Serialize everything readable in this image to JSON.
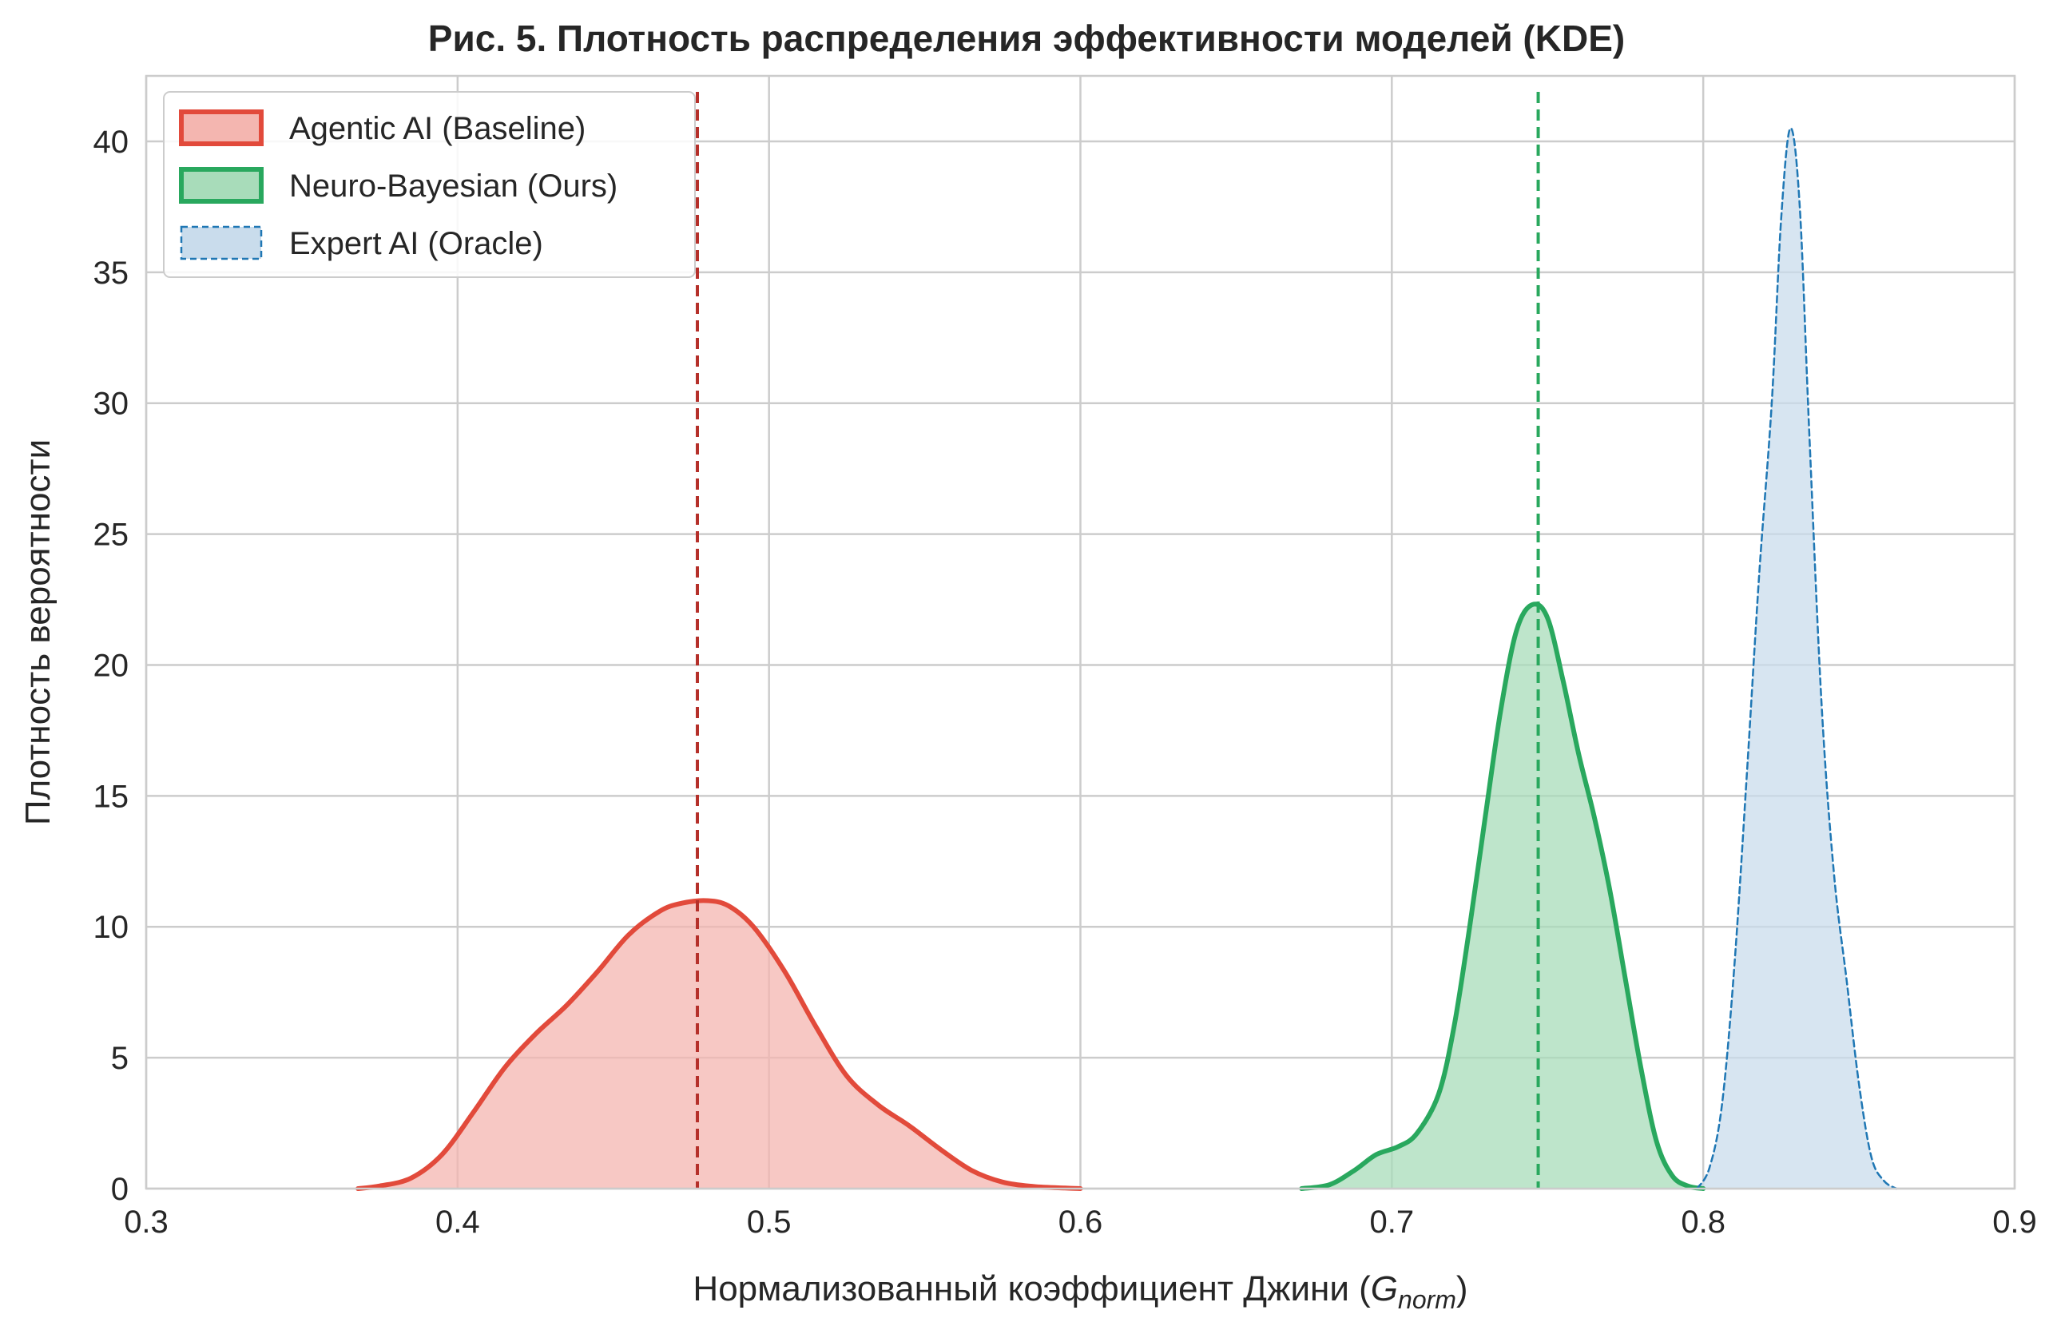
{
  "chart_data": {
    "type": "area",
    "title": "Рис. 5. Плотность распределения эффективности моделей (KDE)",
    "xlabel": "Нормализованный коэффициент Джини (",
    "xlabel_math": "G",
    "xlabel_sub": "norm",
    "xlabel_close": ")",
    "ylabel": "Плотность вероятности",
    "xlim": [
      0.3,
      0.9
    ],
    "ylim": [
      0,
      42.5
    ],
    "xticks": [
      0.3,
      0.4,
      0.5,
      0.6,
      0.7,
      0.8,
      0.9
    ],
    "xtick_labels": [
      "0.3",
      "0.4",
      "0.5",
      "0.6",
      "0.7",
      "0.8",
      "0.9"
    ],
    "yticks": [
      0,
      5,
      10,
      15,
      20,
      25,
      30,
      35,
      40
    ],
    "ytick_labels": [
      "0",
      "5",
      "10",
      "15",
      "20",
      "25",
      "30",
      "35",
      "40"
    ],
    "grid": true,
    "legend_position": "top-left",
    "series": [
      {
        "name": "Agentic AI (Baseline)",
        "color": "#e24a3b",
        "fill": "#f4b6b0",
        "line_style": "solid",
        "mean": 0.477,
        "x": [
          0.368,
          0.375,
          0.385,
          0.395,
          0.405,
          0.415,
          0.425,
          0.435,
          0.445,
          0.455,
          0.465,
          0.472,
          0.48,
          0.487,
          0.495,
          0.505,
          0.515,
          0.525,
          0.535,
          0.545,
          0.555,
          0.565,
          0.575,
          0.585,
          0.595,
          0.6
        ],
        "y": [
          0.0,
          0.1,
          0.4,
          1.3,
          2.9,
          4.6,
          5.9,
          7.0,
          8.3,
          9.7,
          10.6,
          10.9,
          11.0,
          10.8,
          10.0,
          8.3,
          6.2,
          4.3,
          3.2,
          2.4,
          1.5,
          0.7,
          0.25,
          0.08,
          0.02,
          0.0
        ]
      },
      {
        "name": "Neuro-Bayesian (Ours)",
        "color": "#29a85e",
        "fill": "#a8dcba",
        "line_style": "solid",
        "mean": 0.747,
        "x": [
          0.671,
          0.68,
          0.688,
          0.695,
          0.702,
          0.708,
          0.715,
          0.72,
          0.725,
          0.73,
          0.735,
          0.74,
          0.745,
          0.75,
          0.755,
          0.76,
          0.765,
          0.77,
          0.775,
          0.78,
          0.785,
          0.79,
          0.795,
          0.8
        ],
        "y": [
          0.0,
          0.15,
          0.7,
          1.3,
          1.6,
          2.1,
          3.6,
          6.2,
          10.0,
          14.2,
          18.3,
          21.3,
          22.3,
          21.8,
          19.4,
          16.6,
          14.2,
          11.4,
          8.0,
          4.6,
          1.8,
          0.5,
          0.1,
          0.0
        ]
      },
      {
        "name": "Expert AI (Oracle)",
        "color": "#1f77b4",
        "fill": "#c9dcec",
        "line_style": "dashed",
        "x": [
          0.798,
          0.802,
          0.806,
          0.81,
          0.814,
          0.818,
          0.822,
          0.825,
          0.828,
          0.831,
          0.834,
          0.838,
          0.842,
          0.846,
          0.85,
          0.854,
          0.858,
          0.862
        ],
        "y": [
          0.0,
          0.8,
          3.2,
          8.5,
          15.8,
          23.5,
          30.0,
          37.0,
          40.5,
          37.5,
          29.0,
          18.5,
          12.0,
          8.0,
          4.0,
          1.2,
          0.3,
          0.0
        ]
      }
    ]
  }
}
